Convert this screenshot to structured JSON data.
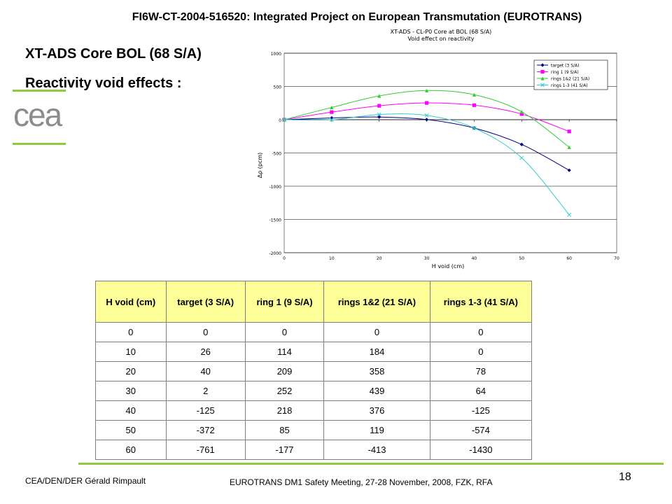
{
  "header": {
    "title": "FI6W-CT-2004-516520: Integrated Project on European Transmutation (EUROTRANS)"
  },
  "slide": {
    "title": "XT-ADS Core BOL (68 S/A)",
    "subtitle": "Reactivity void effects :"
  },
  "logo": {
    "text": "cea",
    "accent_color": "#92c83e",
    "text_color": "#8c8c8c"
  },
  "chart_data": {
    "type": "line",
    "title": "XT-ADS - CL-P0 Core at BOL (68 S/A)",
    "subtitle": "Void effect on reactivity",
    "xlabel": "H void (cm)",
    "ylabel": "Δρ (pcm)",
    "xlim": [
      0,
      70
    ],
    "ylim": [
      -2000,
      1000
    ],
    "xticks": [
      0,
      10,
      20,
      30,
      40,
      50,
      60,
      70
    ],
    "yticks": [
      1000,
      500,
      0,
      -500,
      -1000,
      -1500,
      -2000
    ],
    "grid": true,
    "legend_position": "top-right",
    "x": [
      0,
      10,
      20,
      30,
      40,
      50,
      60
    ],
    "series": [
      {
        "name": "target (3 S/A)",
        "values": [
          0,
          26,
          40,
          2,
          -125,
          -372,
          -761
        ],
        "color": "#000080",
        "marker": "diamond"
      },
      {
        "name": "ring 1 (9 S/A)",
        "values": [
          0,
          114,
          209,
          252,
          218,
          85,
          -177
        ],
        "color": "#ff00ff",
        "marker": "square"
      },
      {
        "name": "rings 1&2 (21 S/A)",
        "values": [
          0,
          184,
          358,
          439,
          376,
          119,
          -413
        ],
        "color": "#33cc33",
        "marker": "triangle"
      },
      {
        "name": "rings 1-3 (41 S/A)",
        "values": [
          0,
          0,
          78,
          64,
          -125,
          -574,
          -1430
        ],
        "color": "#33cccc",
        "marker": "x"
      }
    ]
  },
  "table": {
    "headers": [
      "H void (cm)",
      "target (3 S/A)",
      "ring 1 (9 S/A)",
      "rings 1&2 (21 S/A)",
      "rings 1-3 (41 S/A)"
    ],
    "rows": [
      [
        "0",
        "0",
        "0",
        "0",
        "0"
      ],
      [
        "10",
        "26",
        "114",
        "184",
        "0"
      ],
      [
        "20",
        "40",
        "209",
        "358",
        "78"
      ],
      [
        "30",
        "2",
        "252",
        "439",
        "64"
      ],
      [
        "40",
        "-125",
        "218",
        "376",
        "-125"
      ],
      [
        "50",
        "-372",
        "85",
        "119",
        "-574"
      ],
      [
        "60",
        "-761",
        "-177",
        "-413",
        "-1430"
      ]
    ]
  },
  "footer": {
    "left": "CEA/DEN/DER Gérald Rimpault",
    "center": "EUROTRANS DM1 Safety Meeting, 27-28 November, 2008, FZK, RFA",
    "page": "18"
  }
}
